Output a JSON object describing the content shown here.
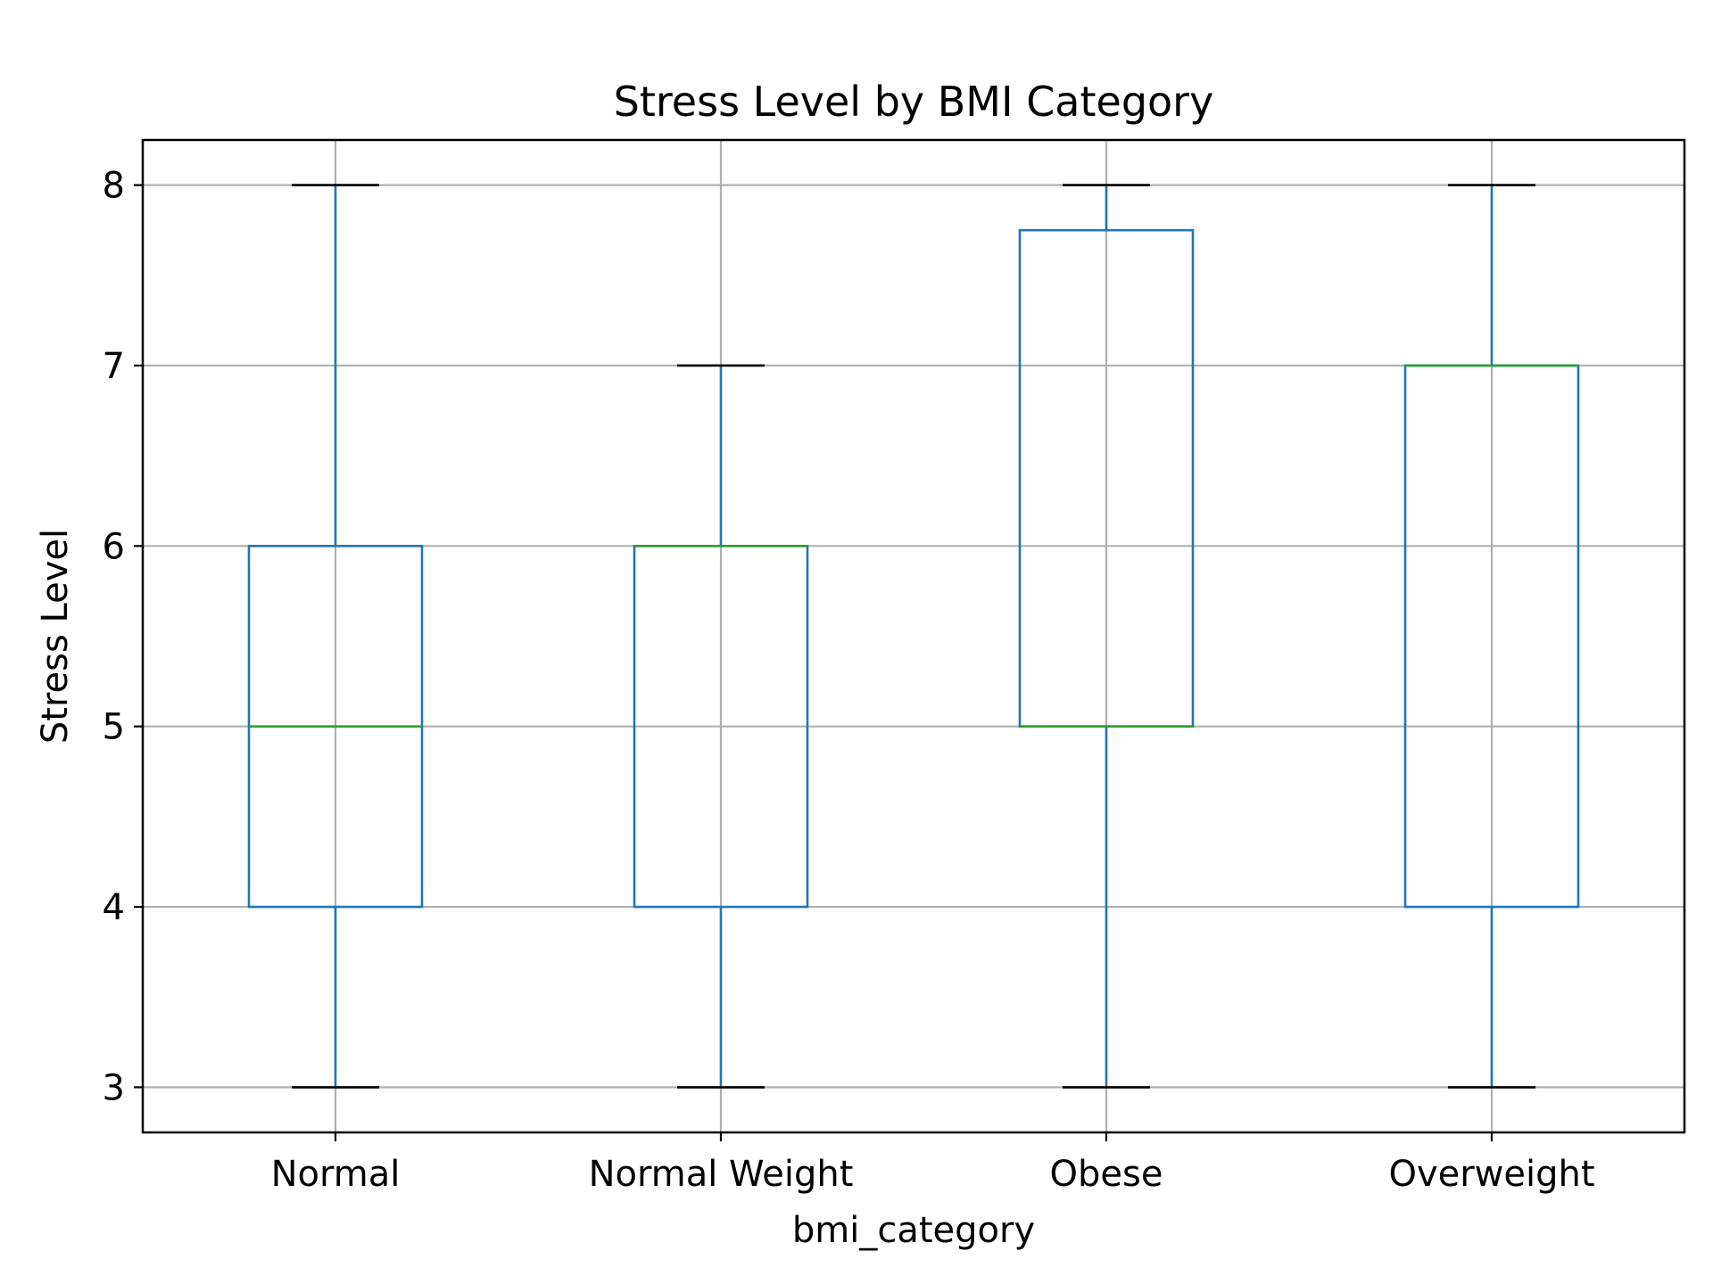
{
  "chart_data": {
    "type": "box",
    "title": "Stress Level by BMI Category",
    "xlabel": "bmi_category",
    "ylabel": "Stress Level",
    "categories": [
      "Normal",
      "Normal Weight",
      "Obese",
      "Overweight"
    ],
    "series": [
      {
        "whisker_low": 3,
        "q1": 4,
        "median": 5,
        "q3": 6,
        "whisker_high": 8
      },
      {
        "whisker_low": 3,
        "q1": 4,
        "median": 6,
        "q3": 6,
        "whisker_high": 7
      },
      {
        "whisker_low": 3,
        "q1": 5,
        "median": 5,
        "q3": 7.75,
        "whisker_high": 8
      },
      {
        "whisker_low": 3,
        "q1": 4,
        "median": 7,
        "q3": 7,
        "whisker_high": 8
      }
    ],
    "yticks": [
      3,
      4,
      5,
      6,
      7,
      8
    ],
    "ylim": [
      2.75,
      8.25
    ],
    "grid": true,
    "colors": {
      "box": "#1f77b4",
      "median": "#2ca02c",
      "cap": "#000000",
      "grid": "#b0b0b0",
      "axes": "#000000"
    }
  }
}
